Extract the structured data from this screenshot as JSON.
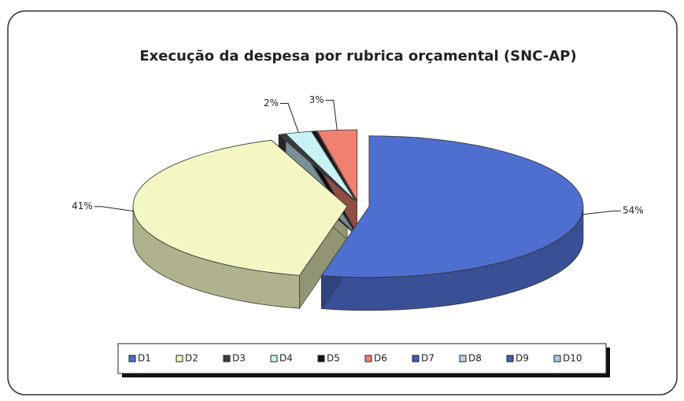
{
  "chart_data": {
    "type": "pie",
    "title": "Execução da despesa por rubrica orçamental (SNC-AP)",
    "categories": [
      "D1",
      "D2",
      "D3",
      "D4",
      "D5",
      "D6",
      "D7",
      "D8",
      "D9",
      "D10"
    ],
    "values": [
      54,
      41,
      0.5,
      2,
      0.3,
      3,
      0,
      0,
      0,
      0
    ],
    "value_labels": [
      "54%",
      "41%",
      null,
      "2%",
      null,
      "3%",
      null,
      null,
      null,
      null
    ],
    "colors": [
      "#4f6fd0",
      "#f4f6c4",
      "#3a3a3a",
      "#c9f2f7",
      "#111111",
      "#f08070",
      "#3f5fc0",
      "#b8d4f0",
      "#4060b0",
      "#a8c8e8"
    ],
    "legend": "bottom"
  }
}
